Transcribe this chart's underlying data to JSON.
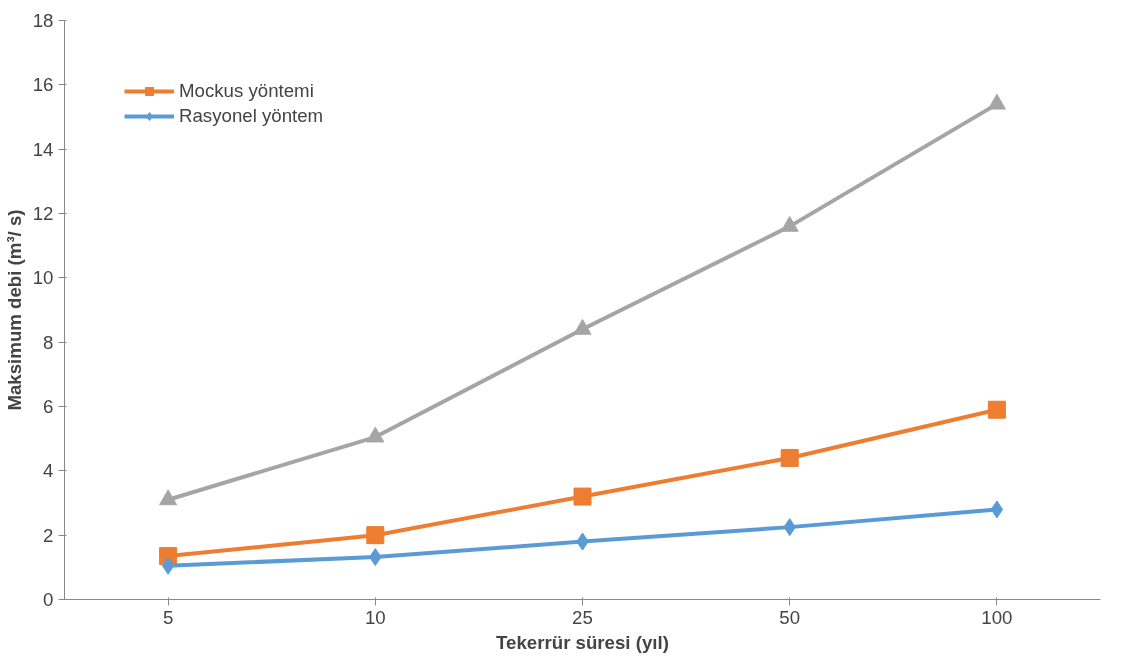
{
  "chart_data": {
    "type": "line",
    "xlabel": "Tekerrür süresi (yıl)",
    "ylabel": "Maksimum debi (m³/ s)",
    "categories": [
      "5",
      "10",
      "25",
      "50",
      "100"
    ],
    "series": [
      {
        "color": "#a5a5a5",
        "marker": "triangle",
        "values": [
          3.1,
          5.05,
          8.4,
          11.6,
          15.4
        ]
      },
      {
        "name": "Mockus yöntemi",
        "color": "#ed7d31",
        "marker": "square",
        "values": [
          1.35,
          2.0,
          3.2,
          4.4,
          5.9
        ]
      },
      {
        "name": "Rasyonel yöntem",
        "color": "#5b9bd5",
        "marker": "diamond",
        "values": [
          1.05,
          1.32,
          1.8,
          2.25,
          2.8
        ]
      }
    ],
    "ylim": [
      0,
      18
    ],
    "yticks": [
      0,
      2,
      4,
      6,
      8,
      10,
      12,
      14,
      16,
      18
    ],
    "grid": false,
    "legend": "top left"
  }
}
